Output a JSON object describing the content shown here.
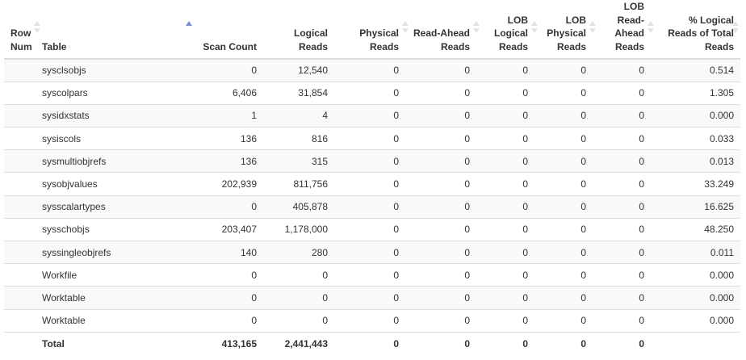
{
  "columns": {
    "row_num": "Row Num",
    "table": "Table",
    "scan_count": "Scan Count",
    "logical_reads": "Logical Reads",
    "physical_reads": "Physical Reads",
    "read_ahead_reads": "Read-Ahead Reads",
    "lob_logical_reads": "LOB Logical Reads",
    "lob_physical_reads": "LOB Physical Reads",
    "lob_read_ahead_reads": "LOB Read-Ahead Reads",
    "pct_logical_reads": "% Logical Reads of Total Reads"
  },
  "sorted_column": "Table",
  "rows": [
    {
      "table": "sysclsobjs",
      "scan": "0",
      "logical": "12,540",
      "physical": "0",
      "readahead": "0",
      "lob_logical": "0",
      "lob_physical": "0",
      "lob_readahead": "0",
      "pct": "0.514"
    },
    {
      "table": "syscolpars",
      "scan": "6,406",
      "logical": "31,854",
      "physical": "0",
      "readahead": "0",
      "lob_logical": "0",
      "lob_physical": "0",
      "lob_readahead": "0",
      "pct": "1.305"
    },
    {
      "table": "sysidxstats",
      "scan": "1",
      "logical": "4",
      "physical": "0",
      "readahead": "0",
      "lob_logical": "0",
      "lob_physical": "0",
      "lob_readahead": "0",
      "pct": "0.000"
    },
    {
      "table": "sysiscols",
      "scan": "136",
      "logical": "816",
      "physical": "0",
      "readahead": "0",
      "lob_logical": "0",
      "lob_physical": "0",
      "lob_readahead": "0",
      "pct": "0.033"
    },
    {
      "table": "sysmultiobjrefs",
      "scan": "136",
      "logical": "315",
      "physical": "0",
      "readahead": "0",
      "lob_logical": "0",
      "lob_physical": "0",
      "lob_readahead": "0",
      "pct": "0.013"
    },
    {
      "table": "sysobjvalues",
      "scan": "202,939",
      "logical": "811,756",
      "physical": "0",
      "readahead": "0",
      "lob_logical": "0",
      "lob_physical": "0",
      "lob_readahead": "0",
      "pct": "33.249"
    },
    {
      "table": "sysscalartypes",
      "scan": "0",
      "logical": "405,878",
      "physical": "0",
      "readahead": "0",
      "lob_logical": "0",
      "lob_physical": "0",
      "lob_readahead": "0",
      "pct": "16.625"
    },
    {
      "table": "sysschobjs",
      "scan": "203,407",
      "logical": "1,178,000",
      "physical": "0",
      "readahead": "0",
      "lob_logical": "0",
      "lob_physical": "0",
      "lob_readahead": "0",
      "pct": "48.250"
    },
    {
      "table": "syssingleobjrefs",
      "scan": "140",
      "logical": "280",
      "physical": "0",
      "readahead": "0",
      "lob_logical": "0",
      "lob_physical": "0",
      "lob_readahead": "0",
      "pct": "0.011"
    },
    {
      "table": "Workfile",
      "scan": "0",
      "logical": "0",
      "physical": "0",
      "readahead": "0",
      "lob_logical": "0",
      "lob_physical": "0",
      "lob_readahead": "0",
      "pct": "0.000"
    },
    {
      "table": "Worktable",
      "scan": "0",
      "logical": "0",
      "physical": "0",
      "readahead": "0",
      "lob_logical": "0",
      "lob_physical": "0",
      "lob_readahead": "0",
      "pct": "0.000"
    },
    {
      "table": "Worktable",
      "scan": "0",
      "logical": "0",
      "physical": "0",
      "readahead": "0",
      "lob_logical": "0",
      "lob_physical": "0",
      "lob_readahead": "0",
      "pct": "0.000"
    }
  ],
  "total": {
    "table": "Total",
    "scan": "413,165",
    "logical": "2,441,443",
    "physical": "0",
    "readahead": "0",
    "lob_logical": "0",
    "lob_physical": "0",
    "lob_readahead": "0"
  },
  "colors": {
    "sort_active": "#7b8fd6",
    "sort_inactive": "#e3e3e3",
    "stripe": "#f9f9f9",
    "border": "#dddddd"
  }
}
